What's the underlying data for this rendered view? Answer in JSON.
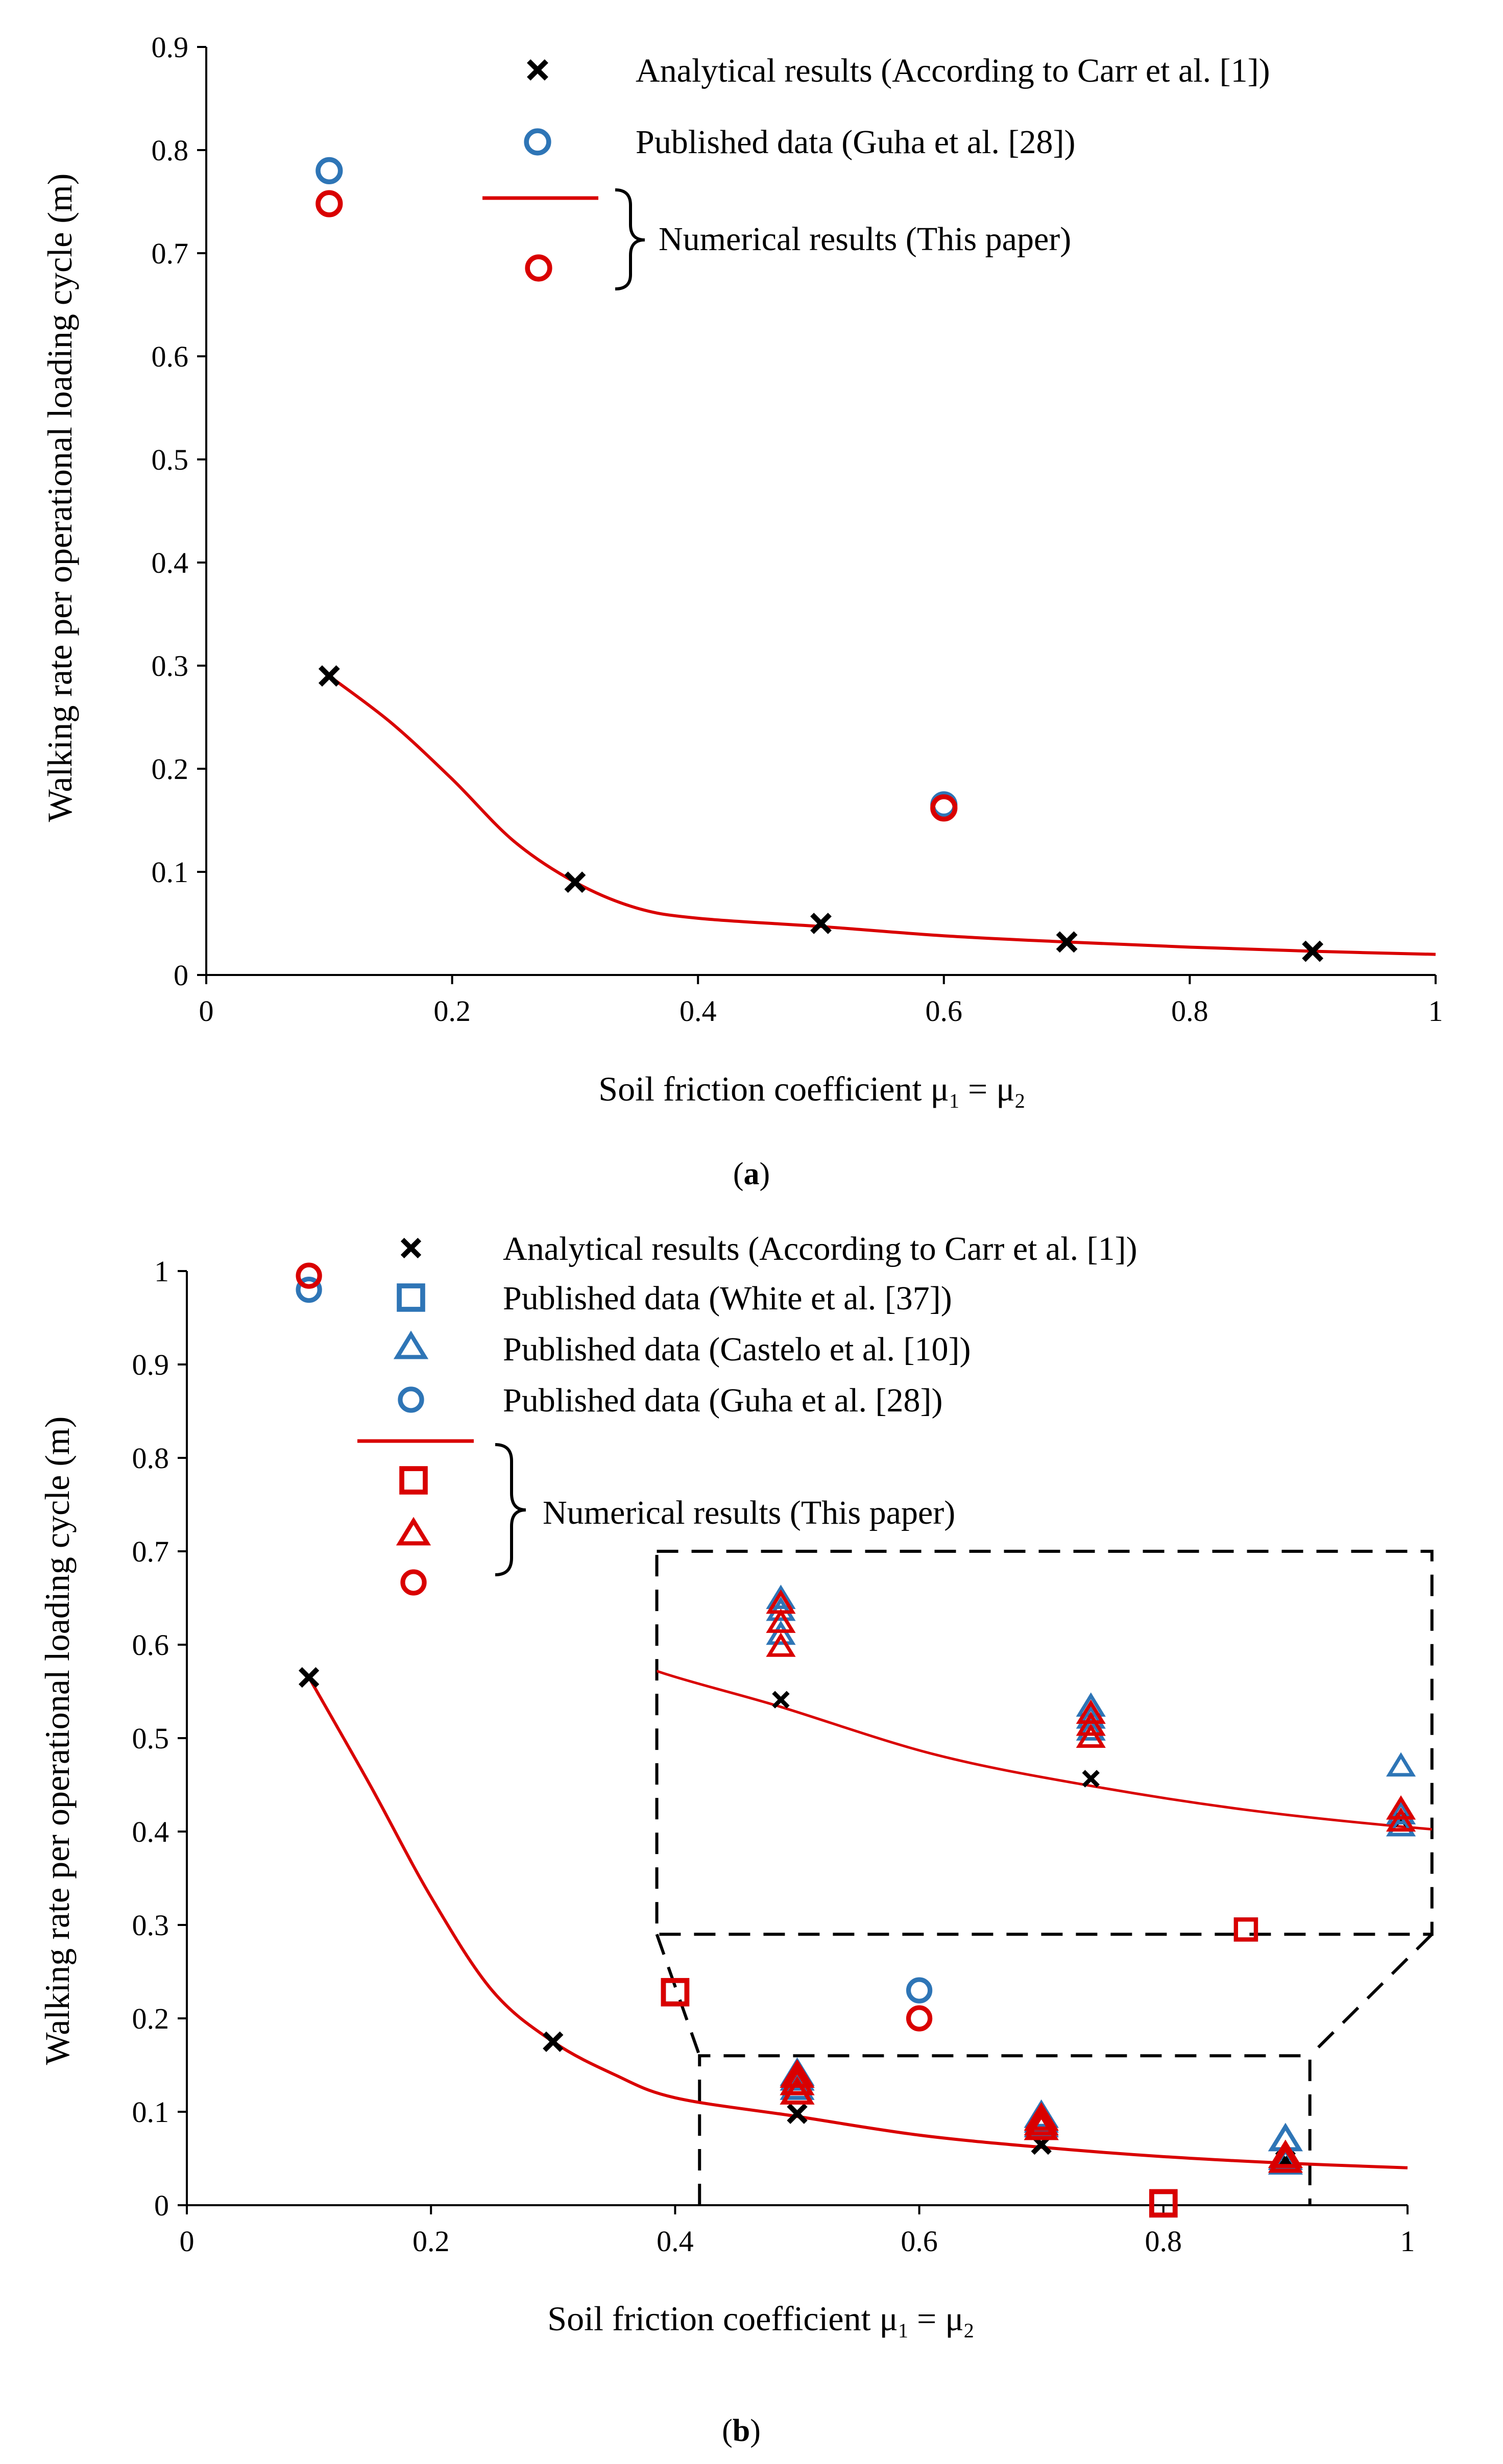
{
  "colors": {
    "red": "#d90000",
    "blue": "#2e75b6",
    "black": "#000000"
  },
  "chart_data": [
    {
      "type": "scatter",
      "panel": "a",
      "caption": {
        "open": "(",
        "letter": "a",
        "close": ")"
      },
      "xlabel": {
        "text": "Soil friction coefficient μ",
        "sub1": "1",
        "mid": " = μ",
        "sub2": "2"
      },
      "ylabel": "Walking rate per operational loading cycle (m)",
      "xlim": [
        0,
        1
      ],
      "ylim": [
        0,
        0.9
      ],
      "xticks": [
        "0",
        "0.2",
        "0.4",
        "0.6",
        "0.8",
        "1"
      ],
      "yticks": [
        "0",
        "0.1",
        "0.2",
        "0.3",
        "0.4",
        "0.5",
        "0.6",
        "0.7",
        "0.8",
        "0.9"
      ],
      "legend": {
        "position": "top-right",
        "entries": [
          {
            "marker": "x-black",
            "text": "Analytical results (According to Carr et al. [1])"
          },
          {
            "marker": "circle-blue",
            "text": "Published data (Guha et al. [28])"
          }
        ],
        "group": {
          "markers": [
            "line-red",
            "circle-red"
          ],
          "text": "Numerical results (This paper)"
        }
      },
      "series": [
        {
          "name": "Analytical results (According to Carr et al. [1])",
          "marker": "x",
          "color": "black",
          "x": [
            0.1,
            0.3,
            0.5,
            0.7,
            0.9
          ],
          "y": [
            0.29,
            0.09,
            0.05,
            0.032,
            0.023
          ]
        },
        {
          "name": "Published data (Guha et al. [28])",
          "marker": "circle",
          "color": "blue",
          "x": [
            0.1,
            0.6
          ],
          "y": [
            0.78,
            0.165
          ]
        },
        {
          "name": "Numerical results (This paper) - points",
          "marker": "circle",
          "color": "red",
          "x": [
            0.1,
            0.6
          ],
          "y": [
            0.748,
            0.162
          ]
        },
        {
          "name": "Numerical results (This paper) - curve",
          "marker": "line",
          "color": "red",
          "x": [
            0.1,
            0.15,
            0.2,
            0.25,
            0.3,
            0.35,
            0.4,
            0.5,
            0.6,
            0.7,
            0.8,
            0.9,
            1.0
          ],
          "y": [
            0.29,
            0.245,
            0.19,
            0.13,
            0.09,
            0.065,
            0.055,
            0.047,
            0.038,
            0.032,
            0.027,
            0.023,
            0.02
          ]
        }
      ]
    },
    {
      "type": "scatter",
      "panel": "b",
      "caption": {
        "open": "(",
        "letter": "b",
        "close": ")"
      },
      "xlabel": {
        "text": "Soil friction coefficient μ",
        "sub1": "1",
        "mid": " = μ",
        "sub2": "2"
      },
      "ylabel": "Walking rate per operational loading cycle  (m)",
      "xlim": [
        0,
        1
      ],
      "ylim": [
        0,
        1
      ],
      "xticks": [
        "0",
        "0.2",
        "0.4",
        "0.6",
        "0.8",
        "1"
      ],
      "yticks": [
        "0",
        "0.1",
        "0.2",
        "0.3",
        "0.4",
        "0.5",
        "0.6",
        "0.7",
        "0.8",
        "0.9",
        "1"
      ],
      "legend": {
        "position": "top-center",
        "entries": [
          {
            "marker": "x-black",
            "text": "Analytical results (According to Carr et al. [1])"
          },
          {
            "marker": "square-blue",
            "text": "Published data (White et al. [37])"
          },
          {
            "marker": "triangle-blue",
            "text": "Published data (Castelo et al. [10])"
          },
          {
            "marker": "circle-blue",
            "text": "Published data (Guha et al. [28])"
          }
        ],
        "group": {
          "markers": [
            "line-red",
            "square-red",
            "triangle-red",
            "circle-red"
          ],
          "text": "Numerical results (This paper)"
        }
      },
      "series": [
        {
          "name": "Analytical results (According to Carr et al. [1])",
          "marker": "x",
          "color": "black",
          "x": [
            0.1,
            0.3,
            0.5,
            0.7,
            0.9
          ],
          "y": [
            0.565,
            0.175,
            0.098,
            0.065,
            0.048
          ]
        },
        {
          "name": "Published data (White et al. [37])",
          "marker": "square",
          "color": "blue",
          "x": [
            0.4,
            0.8
          ],
          "y": [
            0.228,
            0.002
          ]
        },
        {
          "name": "Published data (Castelo et al. [10])",
          "marker": "triangle",
          "color": "blue",
          "x": [
            0.5,
            0.5,
            0.5,
            0.7,
            0.7,
            0.7,
            0.9,
            0.9,
            0.9
          ],
          "y": [
            0.14,
            0.135,
            0.125,
            0.095,
            0.09,
            0.085,
            0.07,
            0.05,
            0.045
          ]
        },
        {
          "name": "Published data (Guha et al. [28])",
          "marker": "circle",
          "color": "blue",
          "x": [
            0.1,
            0.6
          ],
          "y": [
            0.98,
            0.23
          ]
        },
        {
          "name": "Numerical results (This paper) - squares",
          "marker": "square",
          "color": "red",
          "x": [
            0.4,
            0.8
          ],
          "y": [
            0.228,
            0.002
          ]
        },
        {
          "name": "Numerical results (This paper) - triangles",
          "marker": "triangle",
          "color": "red",
          "x": [
            0.5,
            0.5,
            0.5,
            0.7,
            0.7,
            0.7,
            0.9,
            0.9
          ],
          "y": [
            0.138,
            0.13,
            0.12,
            0.092,
            0.087,
            0.082,
            0.052,
            0.047
          ]
        },
        {
          "name": "Numerical results (This paper) - circles",
          "marker": "circle",
          "color": "red",
          "x": [
            0.1,
            0.6
          ],
          "y": [
            0.995,
            0.2
          ]
        },
        {
          "name": "Numerical results (This paper) - curve",
          "marker": "line",
          "color": "red",
          "x": [
            0.1,
            0.15,
            0.2,
            0.25,
            0.3,
            0.35,
            0.4,
            0.5,
            0.6,
            0.7,
            0.8,
            0.9,
            1.0
          ],
          "y": [
            0.565,
            0.45,
            0.33,
            0.23,
            0.175,
            0.14,
            0.115,
            0.095,
            0.075,
            0.062,
            0.052,
            0.045,
            0.04
          ]
        }
      ],
      "inset": {
        "description": "magnified view of the region x 0.42–0.92, y 0–0.16",
        "magnified_x": [
          0.42,
          0.92
        ],
        "magnified_y": [
          0,
          0.16
        ],
        "placed_x": [
          0.385,
          1.02
        ],
        "placed_y": [
          0.29,
          0.7
        ],
        "markers_from": "series"
      }
    }
  ]
}
